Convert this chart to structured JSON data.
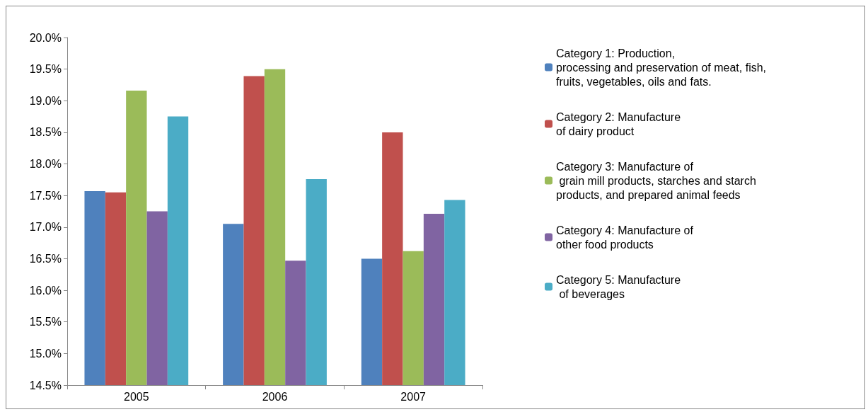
{
  "chart_data": {
    "type": "bar",
    "categories": [
      "2005",
      "2006",
      "2007"
    ],
    "series": [
      {
        "name": "Category 1: Production,\nprocessing and preservation of meat, fish,\nfruits, vegetables, oils and fats.",
        "color": "#4f81bd",
        "values": [
          17.57,
          17.05,
          16.5
        ]
      },
      {
        "name": "Category 2: Manufacture\nof dairy product",
        "color": "#c0504d",
        "values": [
          17.55,
          19.39,
          18.5
        ]
      },
      {
        "name": "Category 3: Manufacture of\n grain mill products, starches and starch\nproducts, and prepared animal feeds",
        "color": "#9bbb59",
        "values": [
          19.16,
          19.5,
          16.62
        ]
      },
      {
        "name": "Category 4: Manufacture of\nother food products",
        "color": "#8064a2",
        "values": [
          17.25,
          16.47,
          17.21
        ]
      },
      {
        "name": "Category 5: Manufacture\n of beverages",
        "color": "#4bacc6",
        "values": [
          18.75,
          17.76,
          17.43
        ]
      }
    ],
    "ylim": [
      14.5,
      20
    ],
    "yticks": [
      {
        "value": 14.5,
        "label": "14.5%"
      },
      {
        "value": 15,
        "label": "15.0%"
      },
      {
        "value": 15.5,
        "label": "15.5%"
      },
      {
        "value": 16,
        "label": "16.0%"
      },
      {
        "value": 16.5,
        "label": "16.5%"
      },
      {
        "value": 17,
        "label": "17.0%"
      },
      {
        "value": 17.5,
        "label": "17.5%"
      },
      {
        "value": 18,
        "label": "18.0%"
      },
      {
        "value": 18.5,
        "label": "18.5%"
      },
      {
        "value": 19,
        "label": "19.0%"
      },
      {
        "value": 19.5,
        "label": "19.5%"
      },
      {
        "value": 20,
        "label": "20.0%"
      }
    ],
    "grid": false,
    "legend": "right"
  }
}
